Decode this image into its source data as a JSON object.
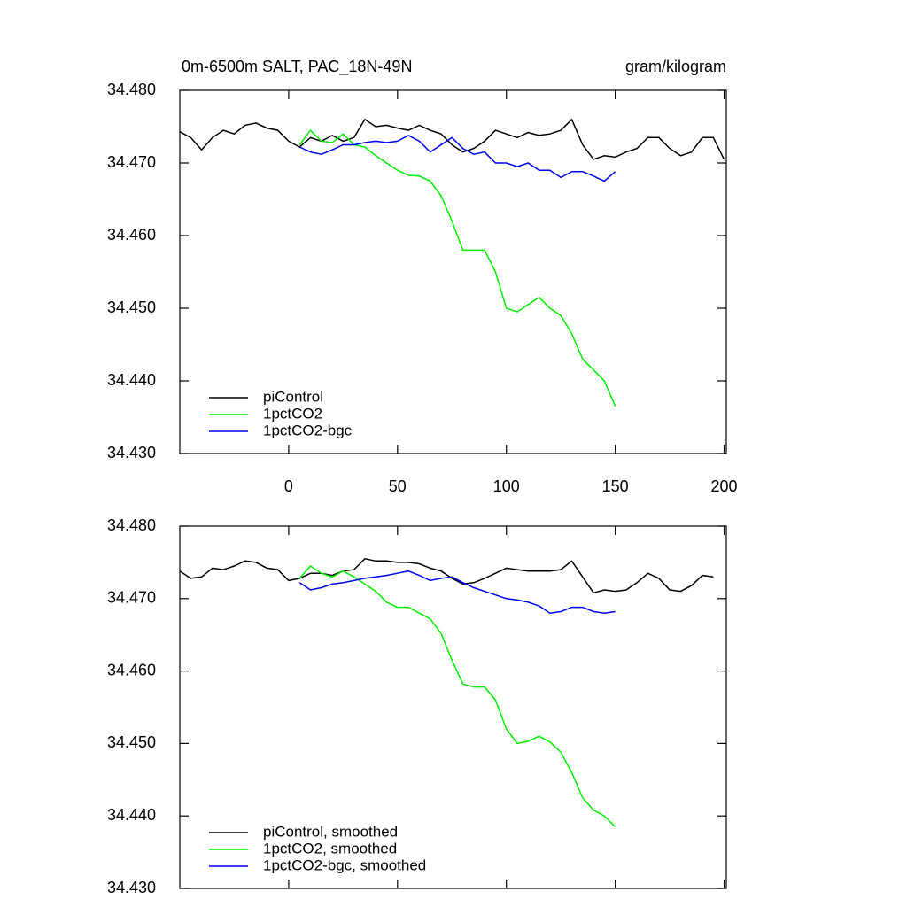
{
  "chart_data": [
    {
      "type": "line",
      "title": "0m-6500m SALT, PAC_18N-49N",
      "units": "gram/kilogram",
      "x": [
        -50,
        -45,
        -40,
        -35,
        -30,
        -25,
        -20,
        -15,
        -10,
        -5,
        0,
        5,
        10,
        15,
        20,
        25,
        30,
        35,
        40,
        45,
        50,
        55,
        60,
        65,
        70,
        75,
        80,
        85,
        90,
        95,
        100,
        105,
        110,
        115,
        120,
        125,
        130,
        135,
        140,
        145,
        150,
        155,
        160,
        165,
        170,
        175,
        180,
        185,
        190,
        195,
        200
      ],
      "xlim": [
        -50,
        201
      ],
      "xticks": [
        0,
        50,
        100,
        150,
        200
      ],
      "xtick_labels": true,
      "ylim": [
        34.43,
        34.48
      ],
      "yticks": [
        {
          "value": 34.43,
          "label": "34.430"
        },
        {
          "value": 34.44,
          "label": "34.440"
        },
        {
          "value": 34.45,
          "label": "34.450"
        },
        {
          "value": 34.46,
          "label": "34.460"
        },
        {
          "value": 34.47,
          "label": "34.470"
        },
        {
          "value": 34.48,
          "label": "34.480"
        }
      ],
      "legend": "lower left",
      "series": [
        {
          "name": "piControl",
          "color": "#000000",
          "values": [
            34.4743,
            34.4735,
            34.4718,
            34.4735,
            34.4745,
            34.474,
            34.4752,
            34.4755,
            34.4748,
            34.4745,
            34.473,
            34.4722,
            34.4735,
            34.473,
            34.4738,
            34.473,
            34.4735,
            34.476,
            34.475,
            34.4752,
            34.4748,
            34.4745,
            34.4752,
            34.4745,
            34.474,
            34.4725,
            34.4715,
            34.472,
            34.473,
            34.4745,
            34.474,
            34.4735,
            34.4742,
            34.4738,
            34.474,
            34.4745,
            34.476,
            34.4725,
            34.4705,
            34.471,
            34.4708,
            34.4715,
            34.472,
            34.4735,
            34.4735,
            34.472,
            34.471,
            34.4715,
            34.4735,
            34.4735,
            34.4705
          ]
        },
        {
          "name": "1pctCO2",
          "color": "#00ee00",
          "values": [
            null,
            null,
            null,
            null,
            null,
            null,
            null,
            null,
            null,
            null,
            null,
            34.4725,
            34.4745,
            34.473,
            34.4728,
            34.474,
            34.4725,
            34.4722,
            34.471,
            34.47,
            34.469,
            34.4683,
            34.4682,
            34.4675,
            34.4655,
            34.462,
            34.458,
            34.458,
            34.458,
            34.455,
            34.45,
            34.4495,
            34.4505,
            34.4515,
            34.45,
            34.449,
            34.4465,
            34.443,
            34.4415,
            34.44,
            34.4365,
            null,
            null,
            null,
            null,
            null,
            null,
            null,
            null,
            null,
            null
          ]
        },
        {
          "name": "1pctCO2-bgc",
          "color": "#0000ee",
          "values": [
            null,
            null,
            null,
            null,
            null,
            null,
            null,
            null,
            null,
            null,
            null,
            34.4722,
            34.4715,
            34.4712,
            34.4718,
            34.4725,
            34.4725,
            34.4728,
            34.473,
            34.4728,
            34.473,
            34.4738,
            34.473,
            34.4715,
            34.4725,
            34.4735,
            34.472,
            34.4712,
            34.4715,
            34.47,
            34.47,
            34.4695,
            34.47,
            34.469,
            34.469,
            34.468,
            34.4688,
            34.4688,
            34.4682,
            34.4675,
            34.4688,
            null,
            null,
            null,
            null,
            null,
            null,
            null,
            null,
            null,
            null
          ]
        }
      ]
    },
    {
      "type": "line",
      "x": [
        -50,
        -45,
        -40,
        -35,
        -30,
        -25,
        -20,
        -15,
        -10,
        -5,
        0,
        5,
        10,
        15,
        20,
        25,
        30,
        35,
        40,
        45,
        50,
        55,
        60,
        65,
        70,
        75,
        80,
        85,
        90,
        95,
        100,
        105,
        110,
        115,
        120,
        125,
        130,
        135,
        140,
        145,
        150,
        155,
        160,
        165,
        170,
        175,
        180,
        185,
        190,
        195,
        200
      ],
      "xlim": [
        -50,
        201
      ],
      "xticks": [
        0,
        50,
        100,
        150,
        200
      ],
      "xtick_labels": false,
      "ylim": [
        34.43,
        34.48
      ],
      "yticks": [
        {
          "value": 34.43,
          "label": "34.430"
        },
        {
          "value": 34.44,
          "label": "34.440"
        },
        {
          "value": 34.45,
          "label": "34.450"
        },
        {
          "value": 34.46,
          "label": "34.460"
        },
        {
          "value": 34.47,
          "label": "34.470"
        },
        {
          "value": 34.48,
          "label": "34.480"
        }
      ],
      "legend": "lower left",
      "series": [
        {
          "name": "piControl, smoothed",
          "color": "#000000",
          "values": [
            34.4738,
            34.4728,
            34.473,
            34.4742,
            34.474,
            34.4745,
            34.4752,
            34.475,
            34.4742,
            34.474,
            34.4725,
            34.4728,
            34.4735,
            34.4735,
            34.4732,
            34.4738,
            34.474,
            34.4755,
            34.4752,
            34.4752,
            34.475,
            34.475,
            34.4748,
            34.4742,
            34.4738,
            34.4728,
            34.472,
            34.4722,
            34.4728,
            34.4735,
            34.4742,
            34.474,
            34.4738,
            34.4738,
            34.4738,
            34.474,
            34.4752,
            34.473,
            34.4708,
            34.4712,
            34.471,
            34.4712,
            34.4722,
            34.4735,
            34.4728,
            34.4712,
            34.471,
            34.4718,
            34.4732,
            34.473,
            null
          ]
        },
        {
          "name": "1pctCO2, smoothed",
          "color": "#00ee00",
          "values": [
            null,
            null,
            null,
            null,
            null,
            null,
            null,
            null,
            null,
            null,
            null,
            34.4728,
            34.4745,
            34.4735,
            34.473,
            34.4738,
            34.473,
            34.472,
            34.471,
            34.4695,
            34.4688,
            34.4688,
            34.468,
            34.4672,
            34.4652,
            34.4615,
            34.4582,
            34.4578,
            34.4578,
            34.456,
            34.452,
            34.45,
            34.4503,
            34.451,
            34.4502,
            34.4488,
            34.446,
            34.4425,
            34.4408,
            34.44,
            34.4385,
            null,
            null,
            null,
            null,
            null,
            null,
            null,
            null,
            null,
            null
          ]
        },
        {
          "name": "1pctCO2-bgc, smoothed",
          "color": "#0000ee",
          "values": [
            null,
            null,
            null,
            null,
            null,
            null,
            null,
            null,
            null,
            null,
            null,
            34.4722,
            34.4712,
            34.4715,
            34.472,
            34.4722,
            34.4725,
            34.4728,
            34.473,
            34.4732,
            34.4735,
            34.4738,
            34.4732,
            34.4725,
            34.4728,
            34.473,
            34.4722,
            34.4715,
            34.471,
            34.4705,
            34.47,
            34.4698,
            34.4695,
            34.469,
            34.468,
            34.4682,
            34.4688,
            34.4688,
            34.4682,
            34.468,
            34.4682,
            null,
            null,
            null,
            null,
            null,
            null,
            null,
            null,
            null,
            null
          ]
        }
      ]
    }
  ]
}
